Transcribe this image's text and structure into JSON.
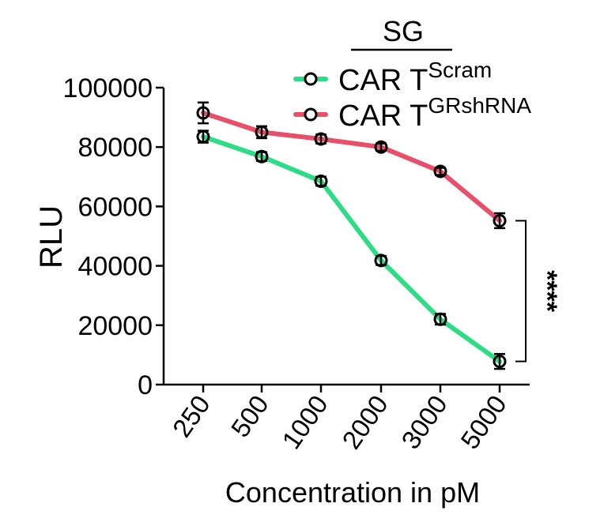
{
  "chart_data": {
    "type": "line",
    "title": "",
    "group_label": "SG",
    "xlabel": "Concentration in pM",
    "ylabel": "RLU",
    "ylim": [
      0,
      100000
    ],
    "yticks": [
      "0",
      "20000",
      "40000",
      "60000",
      "80000",
      "100000"
    ],
    "categories": [
      "250",
      "500",
      "1000",
      "2000",
      "3000",
      "5000"
    ],
    "legend_position": "top-right",
    "series": [
      {
        "name_base": "CAR T",
        "name_sup": "Scram",
        "color": "#2ddc85",
        "values": [
          83500,
          76800,
          68500,
          41800,
          22000,
          7800
        ],
        "errors": [
          2000,
          1500,
          1500,
          1500,
          1800,
          2500
        ]
      },
      {
        "name_base": "CAR T",
        "name_sup": "GRshRNA",
        "color": "#e8506a",
        "values": [
          91500,
          85000,
          82700,
          80000,
          71800,
          55200
        ],
        "errors": [
          3500,
          2000,
          1500,
          1200,
          1200,
          2500
        ]
      }
    ],
    "annotation": "****"
  }
}
